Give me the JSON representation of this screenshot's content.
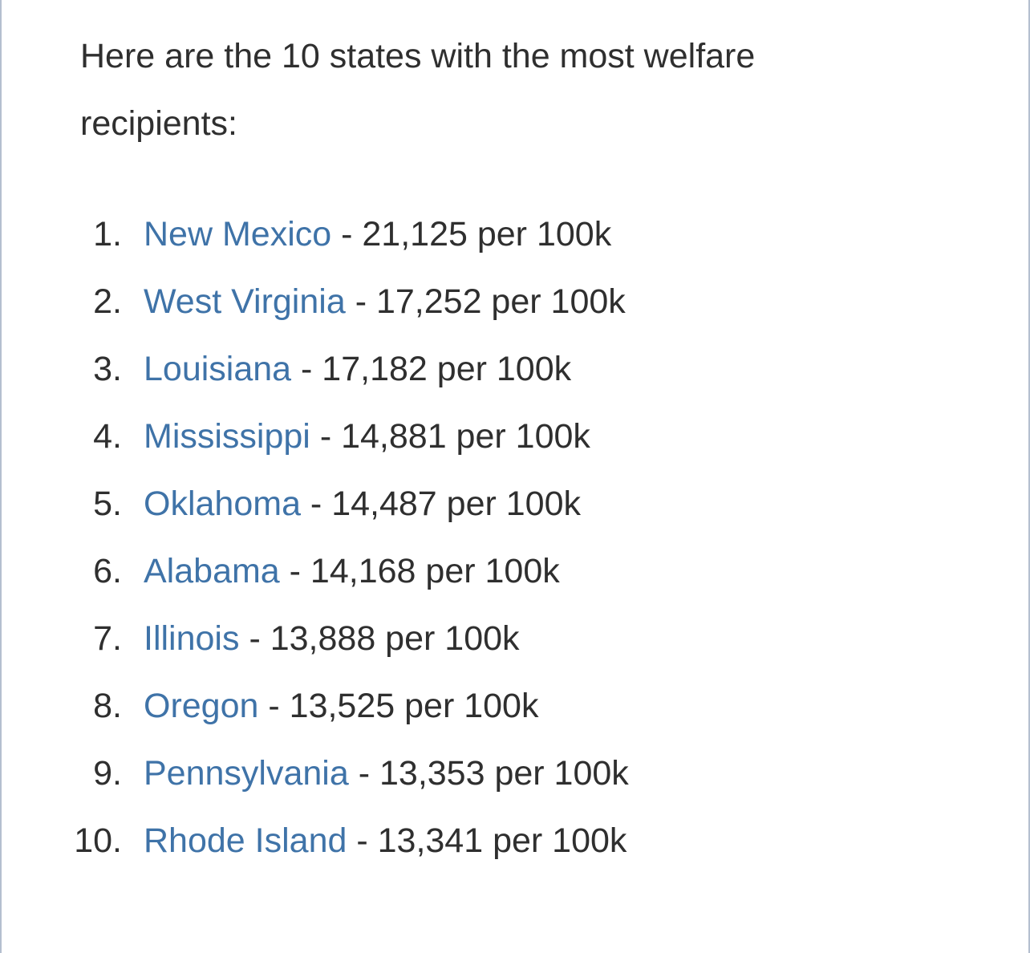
{
  "intro_text": "Here are the 10 states with the most welfare recipients:",
  "colors": {
    "link": "#3f73a8",
    "text": "#2f2f2f",
    "border": "#b4bfcf"
  },
  "states": [
    {
      "number": "1.",
      "name": "New Mexico",
      "rest": " - 21,125 per 100k"
    },
    {
      "number": "2.",
      "name": "West Virginia",
      "rest": " - 17,252 per 100k"
    },
    {
      "number": "3.",
      "name": "Louisiana",
      "rest": " - 17,182 per 100k"
    },
    {
      "number": "4.",
      "name": "Mississippi",
      "rest": " - 14,881 per 100k"
    },
    {
      "number": "5.",
      "name": "Oklahoma",
      "rest": " - 14,487 per 100k"
    },
    {
      "number": "6.",
      "name": "Alabama",
      "rest": " - 14,168 per 100k"
    },
    {
      "number": "7.",
      "name": "Illinois",
      "rest": " - 13,888 per 100k"
    },
    {
      "number": "8.",
      "name": "Oregon",
      "rest": " - 13,525 per 100k"
    },
    {
      "number": "9.",
      "name": "Pennsylvania",
      "rest": " - 13,353 per 100k"
    },
    {
      "number": "10.",
      "name": "Rhode Island",
      "rest": " - 13,341 per 100k"
    }
  ]
}
